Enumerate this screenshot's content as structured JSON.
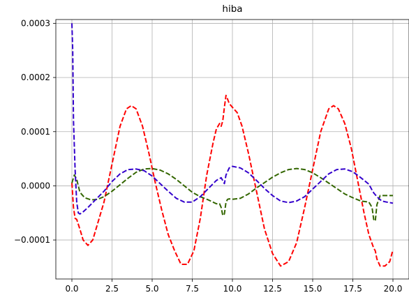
{
  "chart_data": {
    "type": "line",
    "title": "hiba",
    "xlabel": "",
    "ylabel": "",
    "xlim": [
      -1.0,
      21.0
    ],
    "ylim": [
      -0.000172,
      0.000307
    ],
    "grid": true,
    "legend": "none",
    "x_ticks": [
      0.0,
      2.5,
      5.0,
      7.5,
      10.0,
      12.5,
      15.0,
      17.5,
      20.0
    ],
    "x_tick_labels": [
      "0.0",
      "2.5",
      "5.0",
      "7.5",
      "10.0",
      "12.5",
      "15.0",
      "17.5",
      "20.0"
    ],
    "y_ticks": [
      -0.0001,
      0.0,
      0.0001,
      0.0002,
      0.0003
    ],
    "y_tick_labels": [
      "−0.0001",
      "0.0000",
      "0.0001",
      "0.0002",
      "0.0003"
    ],
    "series": [
      {
        "color": "#ff0000",
        "x": [
          0.0,
          0.1,
          0.2,
          0.3,
          0.5,
          0.7,
          1.0,
          1.3,
          1.6,
          2.0,
          2.5,
          3.0,
          3.4,
          3.7,
          4.0,
          4.4,
          4.8,
          5.2,
          5.6,
          6.0,
          6.4,
          6.8,
          7.2,
          7.6,
          8.0,
          8.4,
          8.8,
          9.0,
          9.2,
          9.3,
          9.4,
          9.5,
          9.6,
          9.7,
          9.8,
          10.0,
          10.3,
          10.6,
          11.0,
          11.5,
          12.0,
          12.5,
          13.0,
          13.5,
          14.0,
          14.5,
          15.0,
          15.5,
          16.0,
          16.3,
          16.6,
          17.0,
          17.4,
          17.8,
          18.2,
          18.5,
          18.8,
          18.9,
          19.0,
          19.2,
          19.5,
          19.8,
          20.0
        ],
        "y": [
          5e-06,
          -4e-05,
          -6e-05,
          -6.2e-05,
          -8e-05,
          -0.0001,
          -0.00011,
          -0.0001,
          -7e-05,
          -3e-05,
          4e-05,
          0.00011,
          0.000142,
          0.000148,
          0.000142,
          0.00011,
          6e-05,
          5e-06,
          -4.5e-05,
          -9e-05,
          -0.00012,
          -0.000145,
          -0.000145,
          -0.00012,
          -6e-05,
          2e-05,
          8e-05,
          0.000105,
          0.000115,
          0.00011,
          0.00012,
          0.000145,
          0.000167,
          0.00016,
          0.000152,
          0.000145,
          0.000135,
          0.00011,
          6e-05,
          -1e-05,
          -8e-05,
          -0.000125,
          -0.000148,
          -0.00014,
          -0.000105,
          -4e-05,
          3e-05,
          0.0001,
          0.000142,
          0.000148,
          0.000142,
          0.000115,
          7e-05,
          1e-05,
          -5e-05,
          -9e-05,
          -0.000115,
          -0.00012,
          -0.000135,
          -0.000148,
          -0.000148,
          -0.00014,
          -0.000118
        ]
      },
      {
        "color": "#336600",
        "x": [
          0.0,
          0.15,
          0.3,
          0.5,
          0.8,
          1.2,
          1.6,
          2.0,
          2.5,
          3.0,
          3.5,
          4.0,
          4.5,
          5.0,
          5.5,
          6.0,
          6.5,
          7.0,
          7.5,
          8.0,
          8.5,
          9.0,
          9.2,
          9.3,
          9.4,
          9.5,
          9.6,
          9.7,
          9.8,
          10.0,
          10.5,
          11.0,
          11.5,
          12.0,
          12.5,
          13.0,
          13.5,
          14.0,
          14.5,
          15.0,
          15.5,
          16.0,
          16.5,
          17.0,
          17.5,
          18.0,
          18.5,
          18.7,
          18.8,
          18.9,
          19.0,
          19.2,
          19.5,
          20.0
        ],
        "y": [
          5e-06,
          2e-05,
          1.2e-05,
          -1.2e-05,
          -2.2e-05,
          -2.6e-05,
          -2.5e-05,
          -2e-05,
          -1e-05,
          2e-06,
          1.4e-05,
          2.5e-05,
          3.1e-05,
          3.2e-05,
          2.9e-05,
          2.2e-05,
          1.2e-05,
          0.0,
          -1.2e-05,
          -2e-05,
          -2.6e-05,
          -3.3e-05,
          -3.3e-05,
          -4e-05,
          -5.5e-05,
          -5.2e-05,
          -3e-05,
          -2.5e-05,
          -2.4e-05,
          -2.5e-05,
          -2.3e-05,
          -1.5e-05,
          -4e-06,
          6e-06,
          1.6e-05,
          2.4e-05,
          3e-05,
          3.2e-05,
          3e-05,
          2.4e-05,
          1.5e-05,
          5e-06,
          -5e-06,
          -1.5e-05,
          -2.2e-05,
          -2.8e-05,
          -3e-05,
          -4e-05,
          -6.2e-05,
          -6.5e-05,
          -3.5e-05,
          -1.8e-05,
          -1.8e-05,
          -1.8e-05
        ]
      },
      {
        "color": "#3300cc",
        "x": [
          0.0,
          0.05,
          0.1,
          0.2,
          0.3,
          0.4,
          0.5,
          0.7,
          1.0,
          1.5,
          2.0,
          2.5,
          3.0,
          3.5,
          4.0,
          4.5,
          5.0,
          5.5,
          6.0,
          6.5,
          7.0,
          7.5,
          8.0,
          8.5,
          9.0,
          9.3,
          9.5,
          9.6,
          9.8,
          10.0,
          10.5,
          11.0,
          11.5,
          12.0,
          12.5,
          13.0,
          13.5,
          14.0,
          14.5,
          15.0,
          15.5,
          16.0,
          16.5,
          17.0,
          17.5,
          18.0,
          18.5,
          18.7,
          18.8,
          19.0,
          19.3,
          19.6,
          20.0
        ],
        "y": [
          0.0003,
          0.00025,
          0.00012,
          3e-05,
          -3e-05,
          -5e-05,
          -5.2e-05,
          -4.8e-05,
          -4e-05,
          -2.5e-05,
          -1e-05,
          8e-06,
          2.2e-05,
          3e-05,
          3.1e-05,
          2.8e-05,
          1.8e-05,
          4e-06,
          -1e-05,
          -2.3e-05,
          -3e-05,
          -3e-05,
          -2e-05,
          -5e-06,
          1e-05,
          1.5e-05,
          4e-06,
          2e-05,
          3.3e-05,
          3.6e-05,
          3.3e-05,
          2.4e-05,
          1e-05,
          -5e-06,
          -1.8e-05,
          -2.8e-05,
          -3.1e-05,
          -2.8e-05,
          -2e-05,
          -6e-06,
          8e-06,
          2.2e-05,
          3e-05,
          3.1e-05,
          2.6e-05,
          1.5e-05,
          3e-06,
          -8e-06,
          -1.3e-05,
          -2e-05,
          -2.8e-05,
          -3e-05,
          -3.2e-05
        ]
      }
    ]
  }
}
